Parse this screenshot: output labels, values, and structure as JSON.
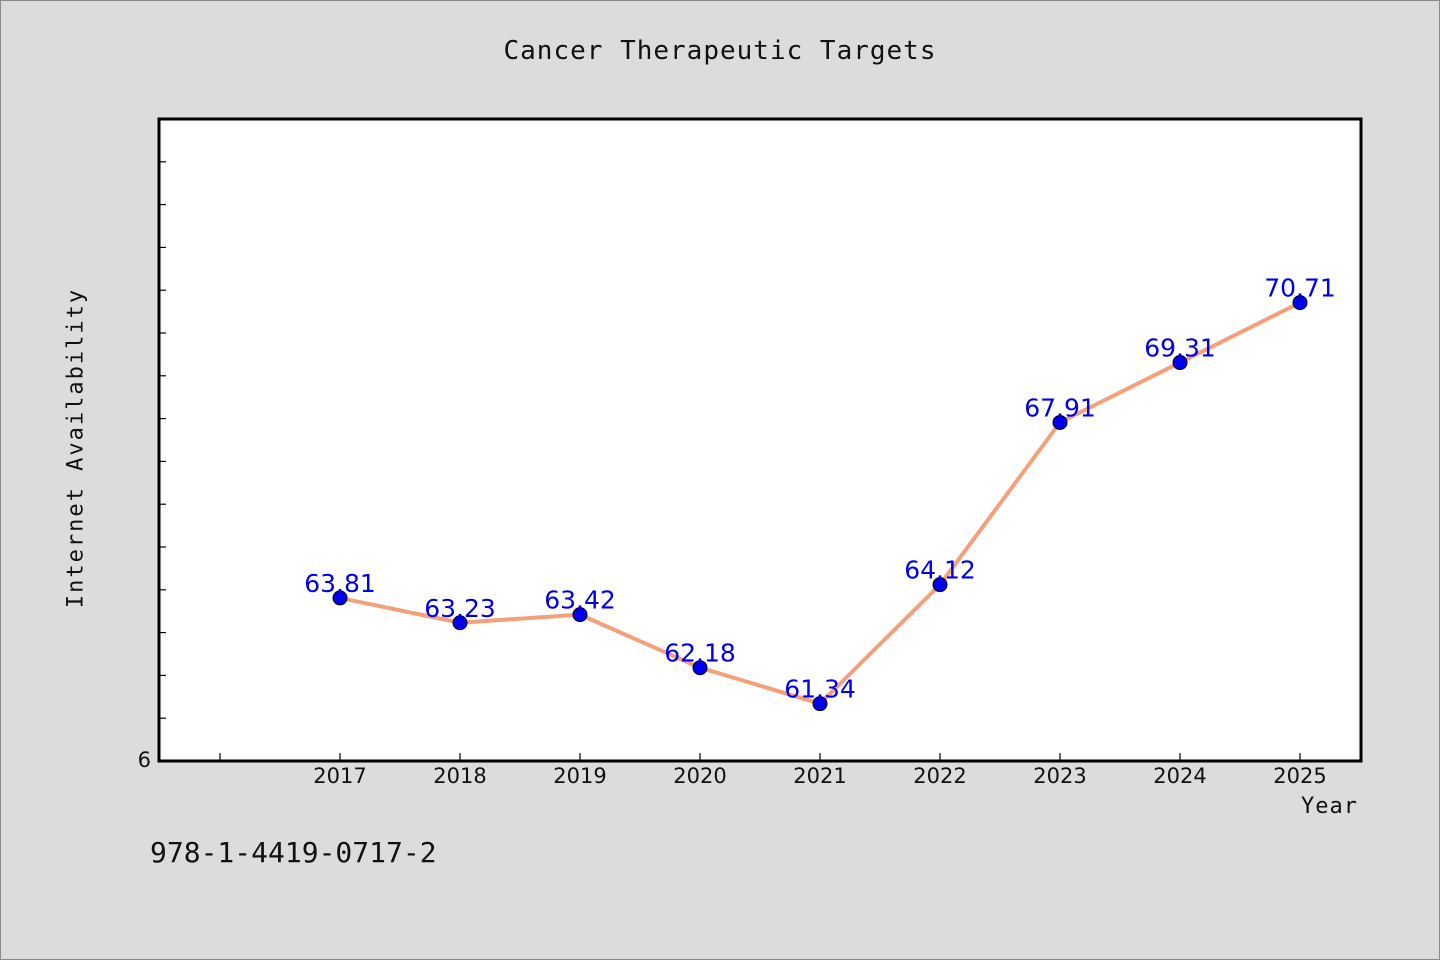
{
  "colors": {
    "background": "#dcdcdc",
    "plot_background": "#ffffff",
    "line": "#f4a07a",
    "marker": "#0000ee",
    "data_label": "#0000ee"
  },
  "footer": {
    "isbn": "978-1-4419-0717-2"
  },
  "chart_data": {
    "type": "line",
    "title": "Cancer Therapeutic Targets",
    "xlabel": "Year",
    "ylabel": "Internet Availability",
    "x": [
      "2017",
      "2018",
      "2019",
      "2020",
      "2021",
      "2022",
      "2023",
      "2024",
      "2025"
    ],
    "series": [
      {
        "values": [
          63.81,
          63.23,
          63.42,
          62.18,
          61.34,
          64.12,
          67.91,
          69.31,
          70.71
        ]
      }
    ],
    "data_labels": [
      "63.81",
      "63.23",
      "63.42",
      "62.18",
      "61.34",
      "64.12",
      "67.91",
      "69.31",
      "70.71"
    ],
    "y_tick_labels": [
      "6"
    ],
    "ylim": [
      60,
      75
    ],
    "grid": false,
    "legend": "none"
  }
}
